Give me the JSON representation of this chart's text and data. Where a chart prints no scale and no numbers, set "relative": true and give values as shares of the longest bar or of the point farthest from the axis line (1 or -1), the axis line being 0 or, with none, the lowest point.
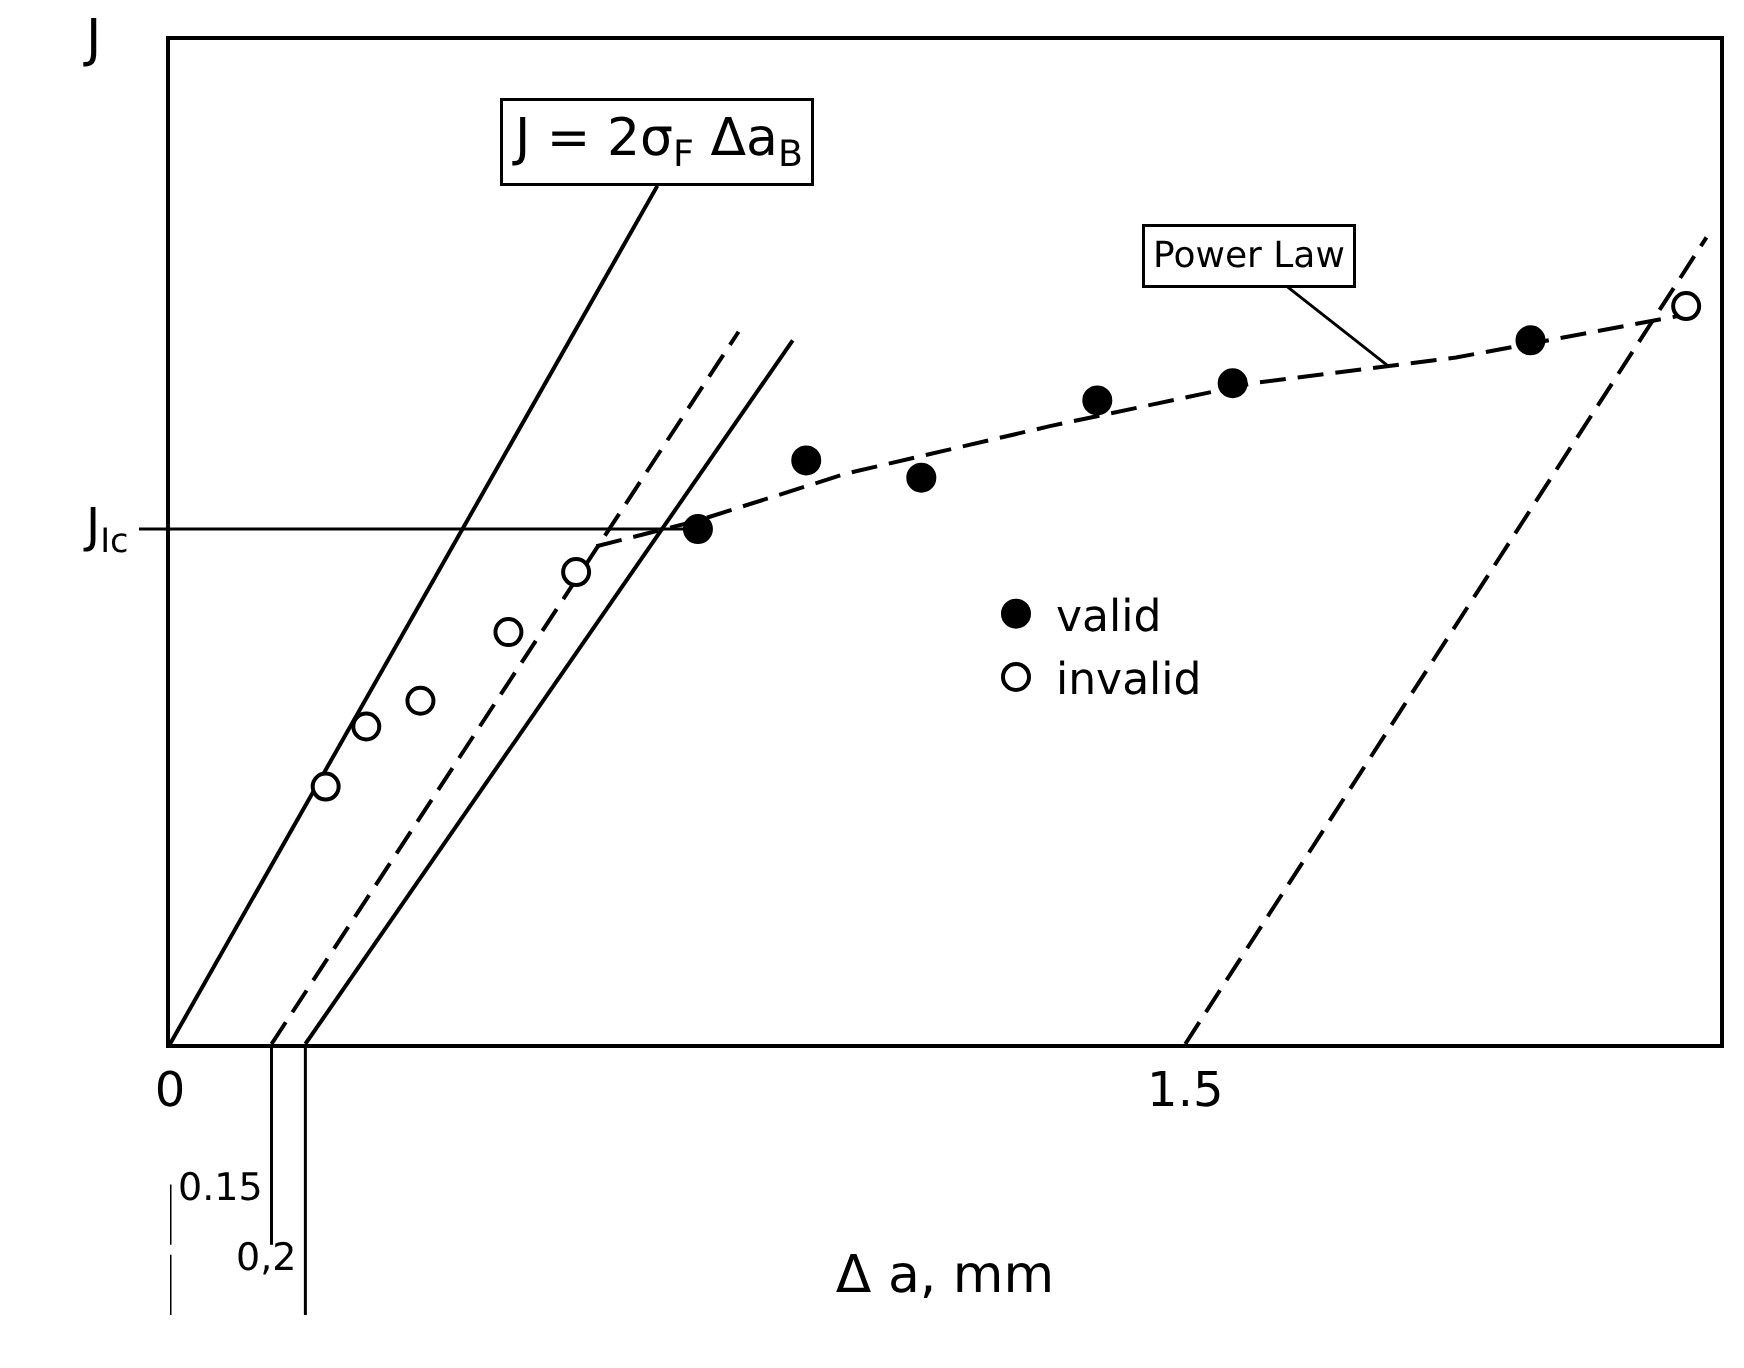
{
  "chart_data": {
    "type": "scatter",
    "relative": true,
    "xlabel": "Δ a, mm",
    "ylabel": "J",
    "xlim": [
      0,
      2.29
    ],
    "xticks": [
      0,
      1.5
    ],
    "tick_labels": "x",
    "grid": false,
    "legend": "right",
    "series": [
      {
        "name": "valid",
        "color": "#000000",
        "marker": "circle",
        "x": [
          0.78,
          0.94,
          1.11,
          1.37,
          1.57,
          2.01
        ],
        "values": [
          0.6,
          0.68,
          0.66,
          0.75,
          0.77,
          0.82
        ]
      },
      {
        "name": "invalid",
        "color": "#ffffff",
        "marker": "circle",
        "x": [
          0.23,
          0.29,
          0.37,
          0.5,
          0.6,
          2.24
        ],
        "values": [
          0.3,
          0.37,
          0.4,
          0.48,
          0.55,
          0.86
        ]
      },
      {
        "type": "line",
        "color": "#000000",
        "line_style": "solid",
        "x": [
          0,
          0.72
        ],
        "values": [
          0,
          1
        ]
      },
      {
        "type": "line",
        "color": "#000000",
        "line_style": "dashed",
        "x": [
          0.15,
          0.84
        ],
        "values": [
          0,
          0.83
        ]
      },
      {
        "type": "line",
        "color": "#000000",
        "line_style": "solid",
        "x": [
          0.2,
          0.92
        ],
        "values": [
          0,
          0.82
        ]
      },
      {
        "type": "line",
        "color": "#000000",
        "line_style": "dashed",
        "x": [
          1.5,
          2.27
        ],
        "values": [
          0,
          0.94
        ]
      },
      {
        "type": "line",
        "color": "#000000",
        "line_style": "dashed",
        "x": [
          0.63,
          0.78,
          1.0,
          1.3,
          1.6,
          1.9,
          2.24
        ],
        "values": [
          0.58,
          0.61,
          0.665,
          0.72,
          0.77,
          0.8,
          0.85
        ]
      }
    ],
    "ref_lines": [
      {
        "axis": "y",
        "value": 0.6,
        "label": "J$_{Ic}$",
        "color": "#000000"
      }
    ],
    "annotations": [
      {
        "text": "J = 2σ$_{F}$ Δa$_{B}$",
        "x": 0.72,
        "y": 1
      },
      {
        "text": "Power Law",
        "x": 1.8,
        "y": 0.79
      },
      {
        "text": "0.15",
        "x": 0.15,
        "y": 0
      },
      {
        "text": "0,2",
        "x": 0.2,
        "y": 0
      }
    ]
  }
}
